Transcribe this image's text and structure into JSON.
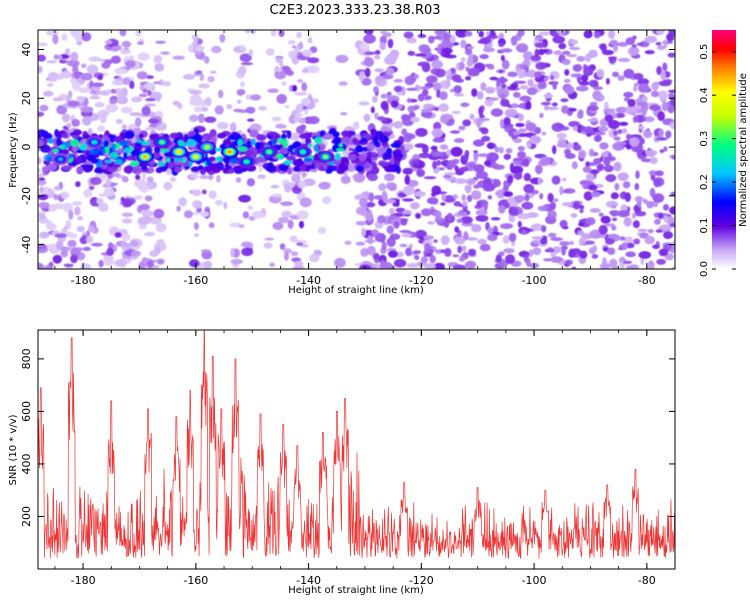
{
  "title": "C2E3.2023.333.23.38.R03",
  "chart_data": [
    {
      "type": "heatmap",
      "xlabel": "Height of straight line (km)",
      "ylabel": "Frequency (Hz)",
      "xlim": [
        -188,
        -75
      ],
      "ylim": [
        -50,
        48
      ],
      "xticks": [
        -180,
        -160,
        -140,
        -120,
        -100,
        -80
      ],
      "yticks": [
        -40,
        -20,
        0,
        20,
        40
      ],
      "colorbar": {
        "label": "Normalized spectral amplitude",
        "range": [
          0,
          0.55
        ],
        "ticks": [
          0.0,
          0.1,
          0.2,
          0.3,
          0.4,
          0.5
        ],
        "colors": [
          "#ffffff",
          "#b080f0",
          "#6000e0",
          "#0000ff",
          "#00c8ff",
          "#00ff80",
          "#c8ff00",
          "#ffff00",
          "#ff8000",
          "#ff0000",
          "#ff0080"
        ]
      },
      "features": {
        "echo_band_center_hz": 0,
        "echo_band_halfwidth_hz": 8,
        "echo_band_extent_km": [
          -188,
          -130
        ],
        "bright_spots": [
          {
            "x": -169,
            "y": -4,
            "v": 0.42
          },
          {
            "x": -163,
            "y": -2,
            "v": 0.4
          },
          {
            "x": -160,
            "y": -4,
            "v": 0.38
          },
          {
            "x": -158,
            "y": 0,
            "v": 0.35
          },
          {
            "x": -154,
            "y": -2,
            "v": 0.45
          },
          {
            "x": -137,
            "y": -4,
            "v": 0.32
          },
          {
            "x": -184,
            "y": -5,
            "v": 0.22
          },
          {
            "x": -178,
            "y": 2,
            "v": 0.25
          },
          {
            "x": -151,
            "y": -6,
            "v": 0.28
          },
          {
            "x": -147,
            "y": -2,
            "v": 0.3
          },
          {
            "x": -141,
            "y": -2,
            "v": 0.28
          },
          {
            "x": -166,
            "y": 2,
            "v": 0.3
          }
        ]
      }
    },
    {
      "type": "line",
      "xlabel": "Height of straight line (km)",
      "ylabel": "SNR (10 * v/v)",
      "xlim": [
        -188,
        -75
      ],
      "ylim": [
        0,
        910
      ],
      "xticks": [
        -180,
        -160,
        -140,
        -120,
        -100,
        -80
      ],
      "yticks": [
        200,
        400,
        600,
        800
      ],
      "color": "#ee3333",
      "baseline": 130,
      "peaks": [
        {
          "x": -187.5,
          "y": 690
        },
        {
          "x": -182,
          "y": 880
        },
        {
          "x": -175,
          "y": 640
        },
        {
          "x": -168.5,
          "y": 610
        },
        {
          "x": -163.5,
          "y": 580
        },
        {
          "x": -161,
          "y": 680
        },
        {
          "x": -158.5,
          "y": 910
        },
        {
          "x": -157,
          "y": 810
        },
        {
          "x": -155.5,
          "y": 610
        },
        {
          "x": -153,
          "y": 800
        },
        {
          "x": -148.5,
          "y": 590
        },
        {
          "x": -144.5,
          "y": 550
        },
        {
          "x": -142,
          "y": 470
        },
        {
          "x": -137.5,
          "y": 520
        },
        {
          "x": -135,
          "y": 600
        },
        {
          "x": -133.5,
          "y": 650
        },
        {
          "x": -123,
          "y": 330
        },
        {
          "x": -110,
          "y": 310
        },
        {
          "x": -98,
          "y": 300
        },
        {
          "x": -87,
          "y": 320
        },
        {
          "x": -82,
          "y": 380
        }
      ]
    }
  ]
}
